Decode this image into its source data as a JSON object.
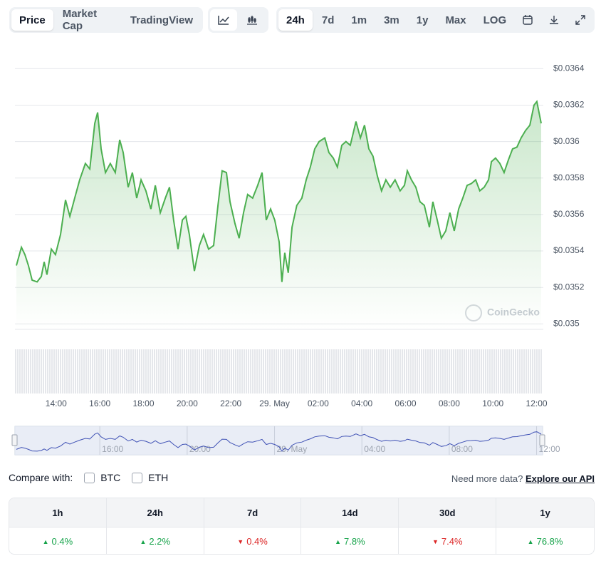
{
  "toolbar": {
    "views": [
      "Price",
      "Market Cap",
      "TradingView"
    ],
    "active_view": 0,
    "ranges": [
      "24h",
      "7d",
      "1m",
      "3m",
      "1y",
      "Max",
      "LOG"
    ],
    "active_range": 0
  },
  "chart_data": {
    "type": "line",
    "color": "#4caf50",
    "grid": true,
    "watermark": "CoinGecko",
    "x": [
      12.18,
      12.41,
      12.57,
      12.73,
      12.9,
      13.13,
      13.32,
      13.45,
      13.58,
      13.78,
      13.97,
      14.2,
      14.43,
      14.63,
      14.85,
      15.08,
      15.34,
      15.54,
      15.77,
      15.9,
      16.06,
      16.26,
      16.48,
      16.71,
      16.91,
      17.07,
      17.3,
      17.49,
      17.69,
      17.89,
      18.11,
      18.34,
      18.54,
      18.77,
      19.0,
      19.19,
      19.38,
      19.58,
      19.78,
      19.94,
      20.1,
      20.33,
      20.56,
      20.75,
      20.98,
      21.21,
      21.41,
      21.6,
      21.8,
      21.96,
      22.19,
      22.38,
      22.58,
      22.77,
      23.0,
      23.23,
      23.43,
      23.62,
      23.82,
      24.01,
      24.21,
      24.34,
      24.47,
      24.63,
      24.8,
      25.02,
      25.25,
      25.45,
      25.64,
      25.84,
      26.04,
      26.3,
      26.49,
      26.69,
      26.88,
      27.08,
      27.27,
      27.47,
      27.73,
      27.93,
      28.12,
      28.32,
      28.51,
      28.71,
      28.9,
      29.1,
      29.3,
      29.52,
      29.75,
      29.95,
      30.08,
      30.27,
      30.47,
      30.66,
      30.86,
      31.09,
      31.25,
      31.45,
      31.64,
      31.84,
      32.03,
      32.23,
      32.43,
      32.62,
      32.82,
      33.01,
      33.21,
      33.4,
      33.6,
      33.8,
      33.93,
      34.12,
      34.32,
      34.51,
      34.71,
      34.9,
      35.1,
      35.29,
      35.49,
      35.69,
      35.88,
      36.01,
      36.21
    ],
    "values": [
      0.03532,
      0.03542,
      0.03538,
      0.03532,
      0.03524,
      0.03523,
      0.03526,
      0.03534,
      0.03527,
      0.03541,
      0.03538,
      0.03549,
      0.03568,
      0.03559,
      0.03569,
      0.03579,
      0.03588,
      0.03585,
      0.0361,
      0.03616,
      0.03596,
      0.03583,
      0.03588,
      0.03583,
      0.03601,
      0.03594,
      0.03575,
      0.03583,
      0.03569,
      0.03579,
      0.03573,
      0.03563,
      0.03576,
      0.03561,
      0.03569,
      0.03575,
      0.03557,
      0.03541,
      0.03557,
      0.03559,
      0.03549,
      0.03529,
      0.03543,
      0.03549,
      0.03541,
      0.03543,
      0.03565,
      0.03584,
      0.03583,
      0.03567,
      0.03555,
      0.03547,
      0.03561,
      0.03571,
      0.03569,
      0.03576,
      0.03583,
      0.03557,
      0.03563,
      0.03557,
      0.03545,
      0.03523,
      0.03539,
      0.03528,
      0.03553,
      0.03565,
      0.03569,
      0.03579,
      0.03586,
      0.03596,
      0.036,
      0.03602,
      0.03594,
      0.03591,
      0.03586,
      0.03598,
      0.036,
      0.03598,
      0.03611,
      0.03602,
      0.03609,
      0.03596,
      0.03592,
      0.03581,
      0.03573,
      0.03579,
      0.03575,
      0.03579,
      0.03573,
      0.03576,
      0.03584,
      0.03579,
      0.03575,
      0.03567,
      0.03565,
      0.03553,
      0.03567,
      0.03557,
      0.03547,
      0.03551,
      0.03561,
      0.03551,
      0.03563,
      0.03569,
      0.03576,
      0.03577,
      0.03579,
      0.03573,
      0.03575,
      0.03579,
      0.03589,
      0.03591,
      0.03588,
      0.03583,
      0.0359,
      0.03596,
      0.03597,
      0.03602,
      0.03606,
      0.03609,
      0.0362,
      0.03622,
      0.0361
    ],
    "xlim": [
      12.18,
      36.21
    ],
    "ylim": [
      0.03497,
      0.0365
    ],
    "xticks": [
      {
        "value": 14,
        "label": "14:00"
      },
      {
        "value": 16,
        "label": "16:00"
      },
      {
        "value": 18,
        "label": "18:00"
      },
      {
        "value": 20,
        "label": "20:00"
      },
      {
        "value": 22,
        "label": "22:00"
      },
      {
        "value": 24,
        "label": "29. May"
      },
      {
        "value": 26,
        "label": "02:00"
      },
      {
        "value": 28,
        "label": "04:00"
      },
      {
        "value": 30,
        "label": "06:00"
      },
      {
        "value": 32,
        "label": "08:00"
      },
      {
        "value": 34,
        "label": "10:00"
      },
      {
        "value": 36,
        "label": "12:00"
      }
    ],
    "yticks": [
      {
        "value": 0.035,
        "label": "$0.035"
      },
      {
        "value": 0.0352,
        "label": "$0.0352"
      },
      {
        "value": 0.0354,
        "label": "$0.0354"
      },
      {
        "value": 0.0356,
        "label": "$0.0356"
      },
      {
        "value": 0.0358,
        "label": "$0.0358"
      },
      {
        "value": 0.036,
        "label": "$0.036"
      },
      {
        "value": 0.0362,
        "label": "$0.0362"
      },
      {
        "value": 0.0364,
        "label": "$0.0364"
      }
    ]
  },
  "navigator": {
    "xticks": [
      {
        "value": 16,
        "label": "16:00"
      },
      {
        "value": 20,
        "label": "20:00"
      },
      {
        "value": 24,
        "label": "29. May"
      },
      {
        "value": 28,
        "label": "04:00"
      },
      {
        "value": 32,
        "label": "08:00"
      },
      {
        "value": 36,
        "label": "12:00"
      }
    ]
  },
  "compare": {
    "label": "Compare with:",
    "options": [
      "BTC",
      "ETH"
    ],
    "more": "Need more data?",
    "link": "Explore our API"
  },
  "changes": [
    {
      "period": "1h",
      "change": "0.4%",
      "direction": "up"
    },
    {
      "period": "24h",
      "change": "2.2%",
      "direction": "up"
    },
    {
      "period": "7d",
      "change": "0.4%",
      "direction": "down"
    },
    {
      "period": "14d",
      "change": "7.8%",
      "direction": "up"
    },
    {
      "period": "30d",
      "change": "7.4%",
      "direction": "down"
    },
    {
      "period": "1y",
      "change": "76.8%",
      "direction": "up"
    }
  ]
}
